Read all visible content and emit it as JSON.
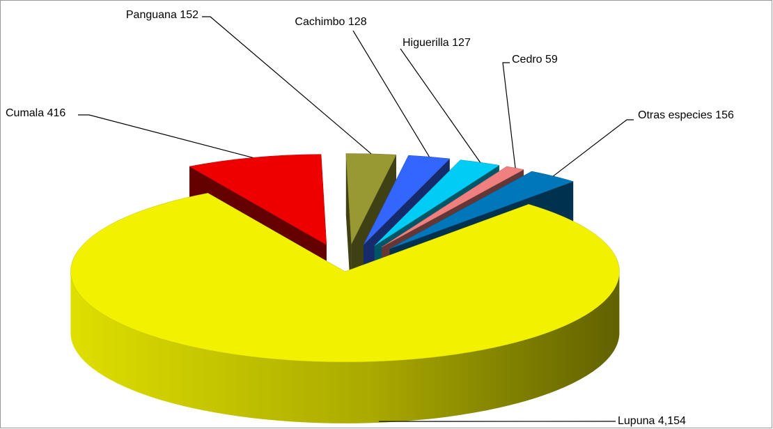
{
  "chart_data": {
    "type": "pie",
    "categories": [
      "Lupuna",
      "Cumala",
      "Panguana",
      "Cachimbo",
      "Higuerilla",
      "Cedro",
      "Otras especies"
    ],
    "values": [
      4154,
      416,
      152,
      128,
      127,
      59,
      156
    ],
    "value_labels": [
      "4,154",
      "416",
      "152",
      "128",
      "127",
      "59",
      "156"
    ],
    "colors": [
      "#f2f200",
      "#ee0000",
      "#999933",
      "#3366ff",
      "#00ccf5",
      "#f08080",
      "#0077bb"
    ]
  }
}
